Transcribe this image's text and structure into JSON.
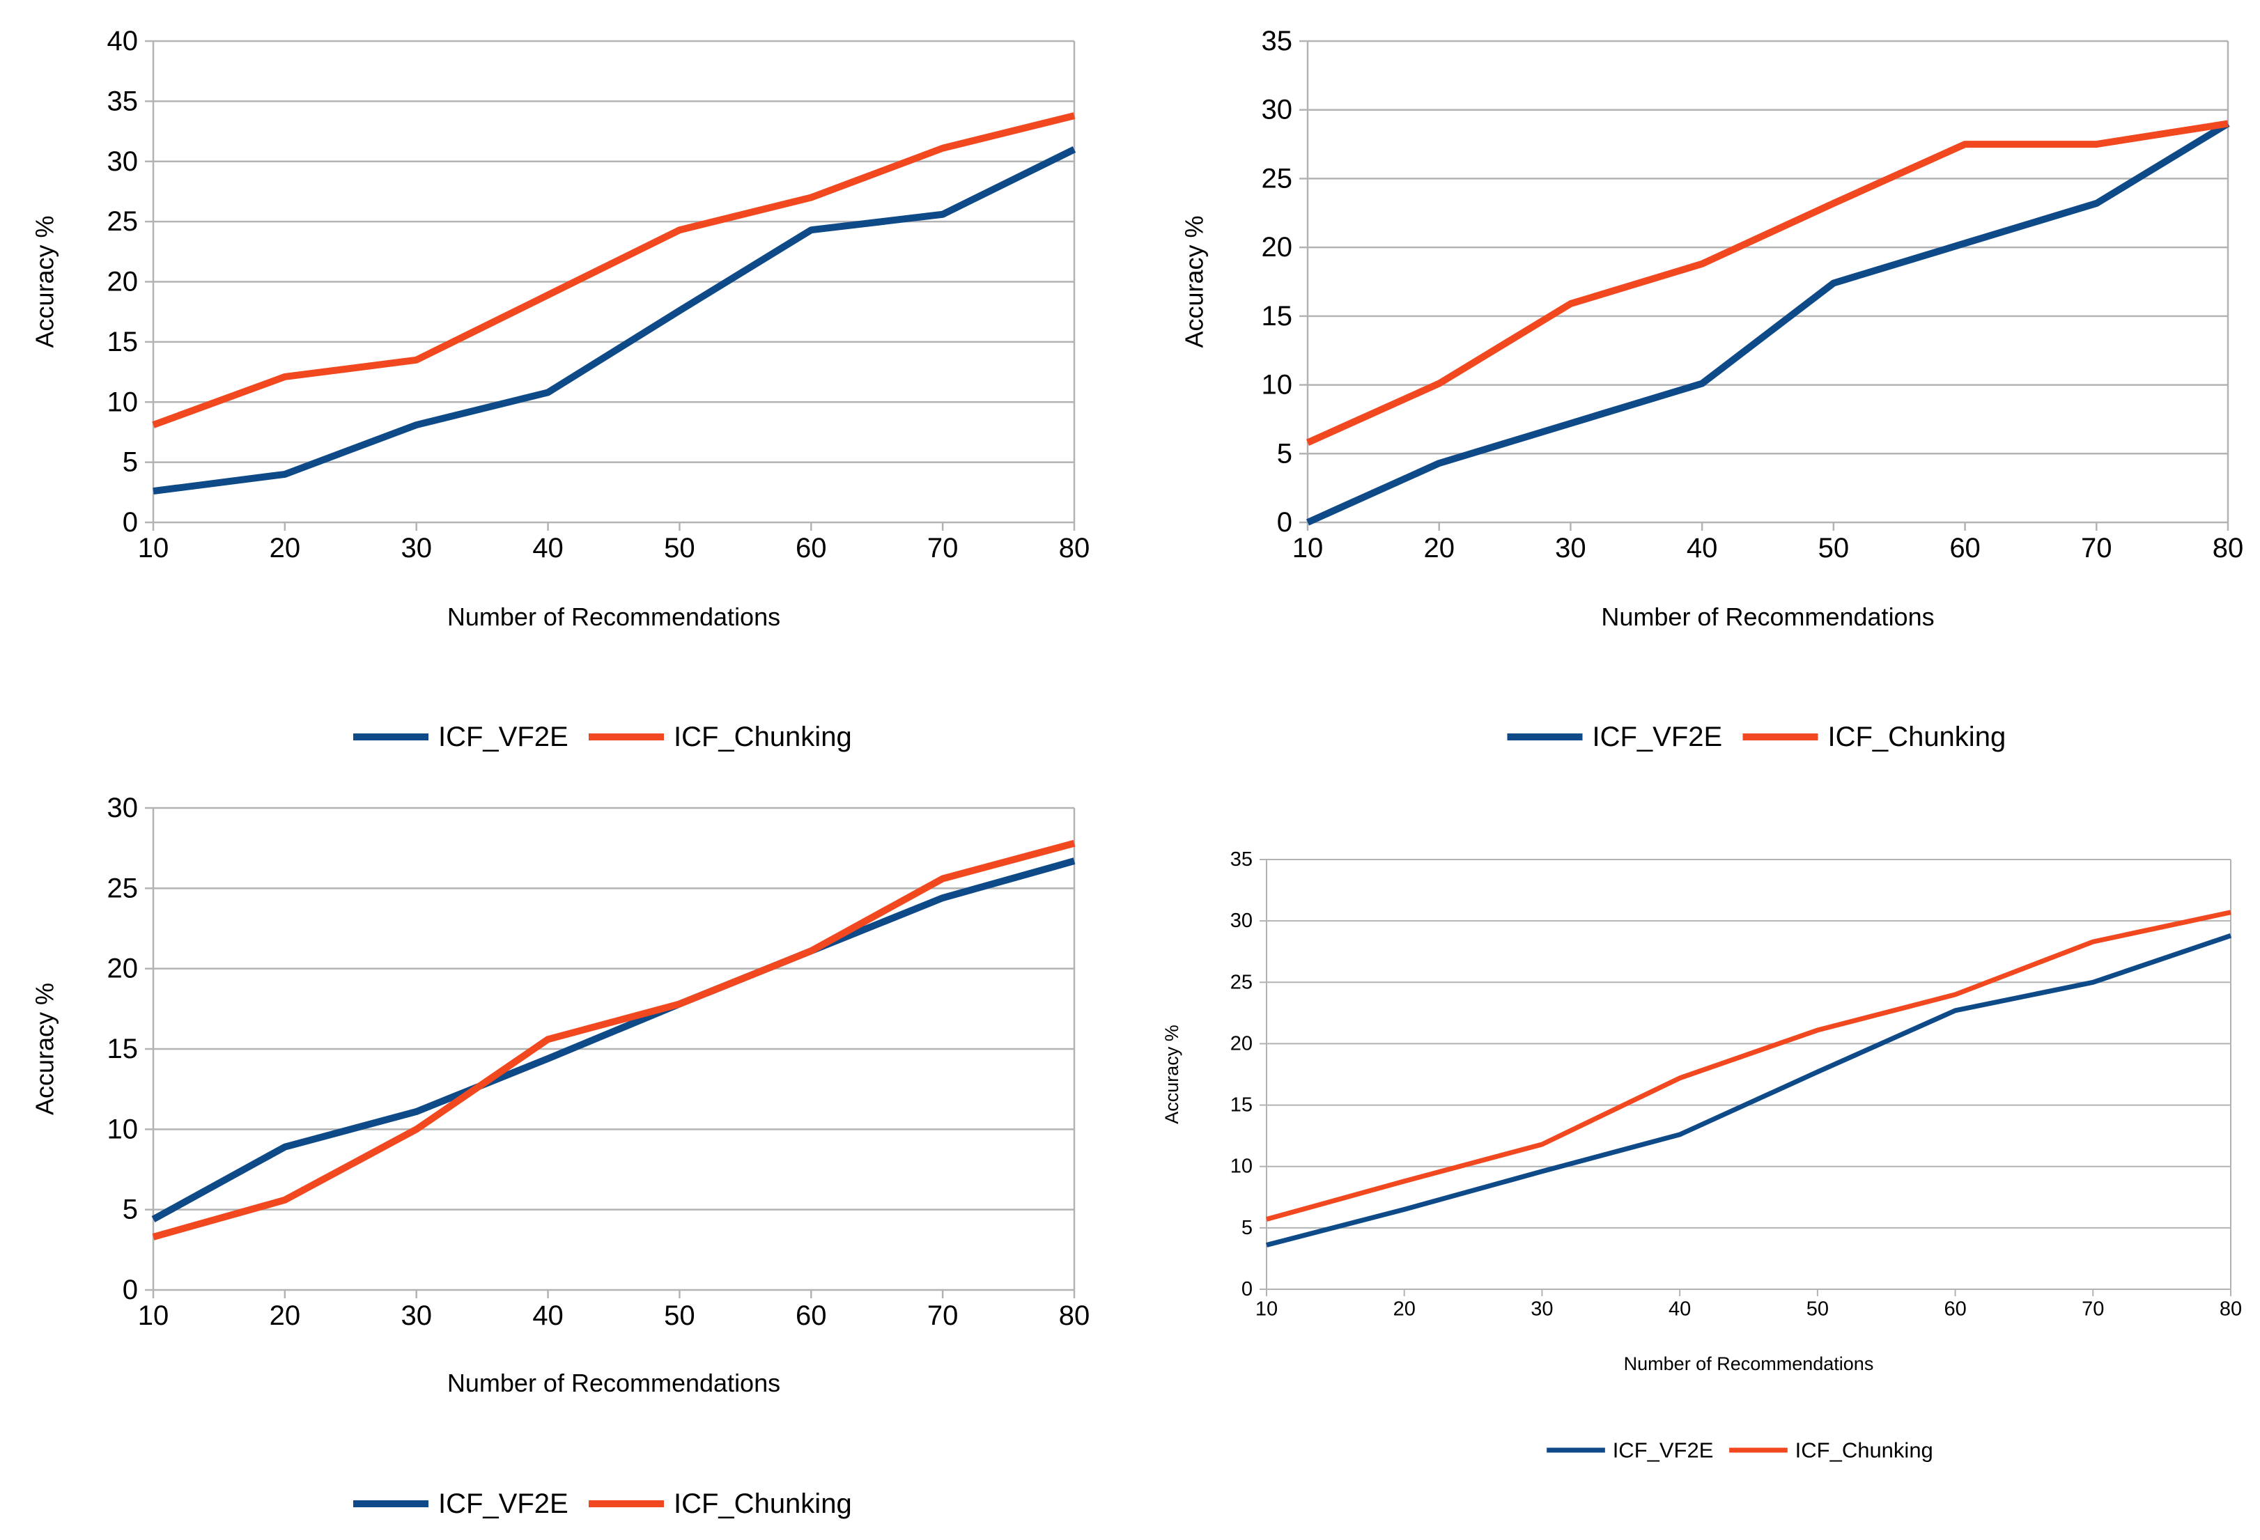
{
  "chart_data": [
    {
      "type": "line",
      "title": "",
      "xlabel": "Number of Recommendations",
      "ylabel": "Accuracy %",
      "x": [
        10,
        20,
        30,
        40,
        50,
        60,
        70,
        80
      ],
      "ylim": [
        0,
        40
      ],
      "yticks": [
        0,
        5,
        10,
        15,
        20,
        25,
        30,
        35,
        40
      ],
      "grid": true,
      "legend": "bottom",
      "series": [
        {
          "name": "ICF_VF2E",
          "color": "#0e4a87",
          "values": [
            2.6,
            4.0,
            8.1,
            10.8,
            17.6,
            24.3,
            25.6,
            31.0
          ]
        },
        {
          "name": "ICF_Chunking",
          "color": "#f2481f",
          "values": [
            8.1,
            12.1,
            13.5,
            18.9,
            24.3,
            27.0,
            31.1,
            33.8
          ]
        }
      ]
    },
    {
      "type": "line",
      "title": "",
      "xlabel": "Number of Recommendations",
      "ylabel": "Accuracy %",
      "x": [
        10,
        20,
        30,
        40,
        50,
        60,
        70,
        80
      ],
      "ylim": [
        0,
        35
      ],
      "yticks": [
        0,
        5,
        10,
        15,
        20,
        25,
        30,
        35
      ],
      "grid": true,
      "legend": "bottom",
      "series": [
        {
          "name": "ICF_VF2E",
          "color": "#0e4a87",
          "values": [
            0.0,
            4.3,
            7.2,
            10.1,
            17.4,
            20.3,
            23.2,
            29.0
          ]
        },
        {
          "name": "ICF_Chunking",
          "color": "#f2481f",
          "values": [
            5.8,
            10.1,
            15.9,
            18.8,
            23.2,
            27.5,
            27.5,
            29.0
          ]
        }
      ]
    },
    {
      "type": "line",
      "title": "",
      "xlabel": "Number of Recommendations",
      "ylabel": "Accuracy %",
      "x": [
        10,
        20,
        30,
        40,
        50,
        60,
        70,
        80
      ],
      "ylim": [
        0,
        30
      ],
      "yticks": [
        0,
        5,
        10,
        15,
        20,
        25,
        30
      ],
      "grid": true,
      "legend": "bottom",
      "series": [
        {
          "name": "ICF_VF2E",
          "color": "#0e4a87",
          "values": [
            4.4,
            8.9,
            11.1,
            14.4,
            17.8,
            21.1,
            24.4,
            26.7
          ]
        },
        {
          "name": "ICF_Chunking",
          "color": "#f2481f",
          "values": [
            3.3,
            5.6,
            10.0,
            15.6,
            17.8,
            21.1,
            25.6,
            27.8
          ]
        }
      ]
    },
    {
      "type": "line",
      "title": "",
      "xlabel": "Number of Recommendations",
      "ylabel": "Accuracy %",
      "x": [
        10,
        20,
        30,
        40,
        50,
        60,
        70,
        80
      ],
      "ylim": [
        0,
        35
      ],
      "yticks": [
        0,
        5,
        10,
        15,
        20,
        25,
        30,
        35
      ],
      "grid": true,
      "legend": "bottom",
      "series": [
        {
          "name": "ICF_VF2E",
          "color": "#0e4a87",
          "values": [
            3.6,
            6.5,
            9.6,
            12.6,
            17.7,
            22.7,
            25.0,
            28.8
          ]
        },
        {
          "name": "ICF_Chunking",
          "color": "#f2481f",
          "values": [
            5.7,
            8.8,
            11.8,
            17.2,
            21.1,
            24.0,
            28.3,
            30.7
          ]
        }
      ]
    }
  ]
}
